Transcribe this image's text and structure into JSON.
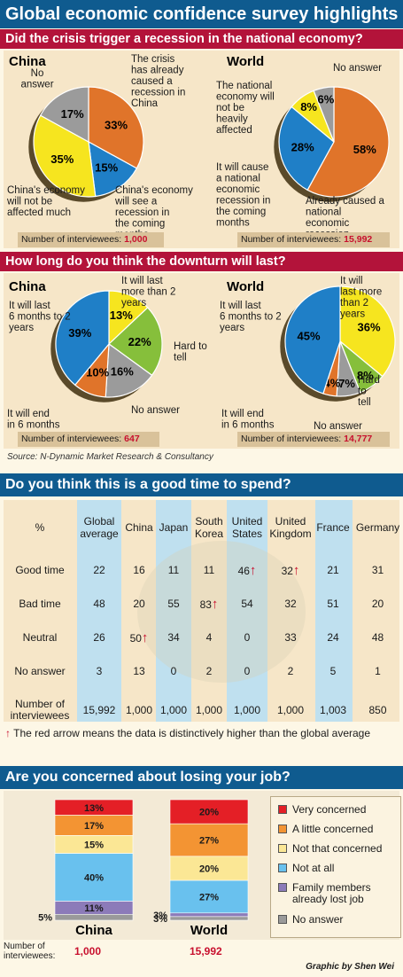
{
  "title": "Global economic confidence survey highlights",
  "source": "Source: N-Dynamic Market Research & Consultancy",
  "credit": "Graphic by Shen Wei",
  "colors": {
    "orange": "#e0742a",
    "blue": "#1f7fc7",
    "yellow": "#f6e51f",
    "gray": "#9b9b9b",
    "green": "#86bf3b",
    "red_section": "#b3133a",
    "blue_section": "#0f5b8f"
  },
  "chart_data": [
    {
      "type": "pie",
      "title": "Did the crisis trigger a recession in the national economy?",
      "charts": [
        {
          "name": "China",
          "count_label": "Number of interviewees:",
          "count": "1,000",
          "slices": [
            {
              "label": "The crisis has already caused a recession in China",
              "value": 33,
              "color": "#e0742a"
            },
            {
              "label": "China's economy will see a recession in the coming months",
              "value": 15,
              "color": "#1f7fc7"
            },
            {
              "label": "China's economy will not be affected much",
              "value": 35,
              "color": "#f6e51f"
            },
            {
              "label": "No answer",
              "value": 17,
              "color": "#9b9b9b"
            }
          ]
        },
        {
          "name": "World",
          "count_label": "Number of interviewees:",
          "count": "15,992",
          "slices": [
            {
              "label": "Already caused a national economic recession",
              "value": 58,
              "color": "#e0742a"
            },
            {
              "label": "It will cause a national economic recession in the coming months",
              "value": 28,
              "color": "#1f7fc7"
            },
            {
              "label": "The national economy will not be heavily affected",
              "value": 8,
              "color": "#f6e51f"
            },
            {
              "label": "No answer",
              "value": 6,
              "color": "#9b9b9b"
            }
          ]
        }
      ]
    },
    {
      "type": "pie",
      "title": "How long do you think the downturn will last?",
      "charts": [
        {
          "name": "China",
          "count_label": "Number of interviewees:",
          "count": "647",
          "slices": [
            {
              "label": "It will last more than 2 years",
              "value": 13,
              "color": "#f6e51f"
            },
            {
              "label": "Hard to tell",
              "value": 22,
              "color": "#86bf3b"
            },
            {
              "label": "No answer",
              "value": 16,
              "color": "#9b9b9b"
            },
            {
              "label": "It will end in 6 months",
              "value": 10,
              "color": "#e0742a"
            },
            {
              "label": "It will last 6 months to 2 years",
              "value": 39,
              "color": "#1f7fc7"
            }
          ]
        },
        {
          "name": "World",
          "count_label": "Number of interviewees:",
          "count": "14,777",
          "slices": [
            {
              "label": "It will last more than 2 years",
              "value": 36,
              "color": "#f6e51f"
            },
            {
              "label": "Hard to tell",
              "value": 8,
              "color": "#86bf3b"
            },
            {
              "label": "No answer",
              "value": 7,
              "color": "#9b9b9b"
            },
            {
              "label": "It will end in 6 months",
              "value": 4,
              "color": "#e0742a"
            },
            {
              "label": "It will last 6 months to 2 years",
              "value": 45,
              "color": "#1f7fc7"
            }
          ]
        }
      ]
    },
    {
      "type": "table",
      "title": "Do you think this is a good time to spend?",
      "corner": "%",
      "columns": [
        "Global average",
        "China",
        "Japan",
        "South Korea",
        "United States",
        "United Kingdom",
        "France",
        "Germany"
      ],
      "rows": [
        {
          "label": "Good time",
          "values": [
            "22",
            "16",
            "11",
            "11",
            "46",
            "32",
            "21",
            "31"
          ],
          "arrows": [
            4,
            5
          ]
        },
        {
          "label": "Bad time",
          "values": [
            "48",
            "20",
            "55",
            "83",
            "54",
            "32",
            "51",
            "20"
          ],
          "arrows": [
            3
          ]
        },
        {
          "label": "Neutral",
          "values": [
            "26",
            "50",
            "34",
            "4",
            "0",
            "33",
            "24",
            "48"
          ],
          "arrows": [
            1
          ]
        },
        {
          "label": "No answer",
          "values": [
            "3",
            "13",
            "0",
            "2",
            "0",
            "2",
            "5",
            "1"
          ],
          "arrows": []
        },
        {
          "label": "Number of interviewees",
          "values": [
            "15,992",
            "1,000",
            "1,000",
            "1,000",
            "1,000",
            "1,000",
            "1,003",
            "850"
          ],
          "arrows": []
        }
      ],
      "note": "The red arrow means the data is distinctively higher than the global average"
    },
    {
      "type": "bar",
      "title": "Are you concerned about losing your job?",
      "categories": [
        "Very concerned",
        "A little concerned",
        "Not that concerned",
        "Not at all",
        "Family members already lost job",
        "No answer"
      ],
      "colors": [
        "#e41f26",
        "#f39433",
        "#fbe795",
        "#69c1ee",
        "#8c7bb9",
        "#9a9a9a"
      ],
      "count_label": "Number of interviewees:",
      "series": [
        {
          "name": "China",
          "values": [
            13,
            17,
            15,
            40,
            11,
            5
          ],
          "count": "1,000"
        },
        {
          "name": "World",
          "values": [
            20,
            27,
            20,
            27,
            3,
            3
          ],
          "count": "15,992"
        }
      ]
    }
  ]
}
